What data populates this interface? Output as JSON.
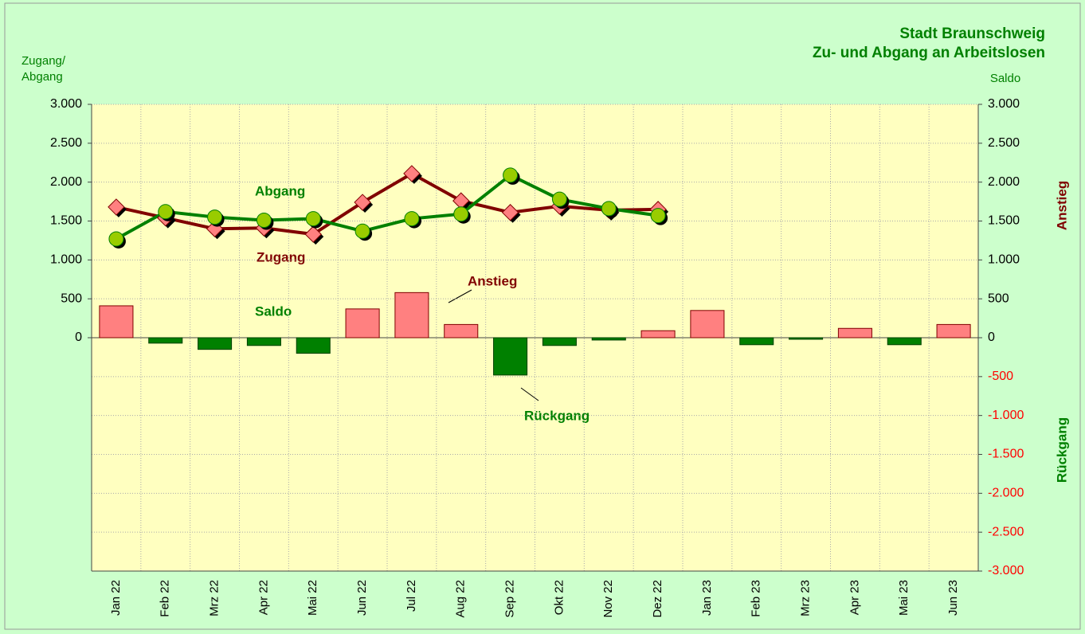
{
  "chart_data": {
    "type": "combo",
    "title": [
      "Stadt Braunschweig",
      "Zu- und Abgang an Arbeitslosen"
    ],
    "y_axis_label": [
      "Zugang/",
      "Abgang"
    ],
    "y2_axis_label": "Saldo",
    "annotations": [
      "Abgang",
      "Zugang",
      "Saldo",
      "Anstieg",
      "Rückgang"
    ],
    "side_labels": [
      "Anstieg",
      "Rückgang"
    ],
    "categories": [
      "Jan 22",
      "Feb 22",
      "Mrz 22",
      "Apr 22",
      "Mai 22",
      "Jun 22",
      "Jul 22",
      "Aug 22",
      "Sep 22",
      "Okt 22",
      "Nov 22",
      "Dez 22",
      "Jan 23",
      "Feb 23",
      "Mrz 23",
      "Apr 23",
      "Mai 23",
      "Jun 23"
    ],
    "bars": {
      "name": "Saldo",
      "axis": "y2",
      "positive_color": "#ff8080",
      "negative_color": "#008000",
      "values": [
        410,
        -70,
        -150,
        -100,
        -200,
        370,
        580,
        170,
        -480,
        -100,
        -30,
        90,
        350,
        -90,
        -20,
        120,
        -90,
        170
      ]
    },
    "series": [
      {
        "name": "Zugang",
        "color": "#800000",
        "marker": "diamond",
        "marker_color": "#ff8080",
        "values": [
          1680,
          1540,
          1400,
          1410,
          1330,
          1740,
          2110,
          1760,
          1610,
          1690,
          1640,
          1650,
          null,
          null,
          null,
          null,
          null,
          null
        ]
      },
      {
        "name": "Abgang",
        "color": "#008000",
        "marker": "circle",
        "marker_color": "#99cc00",
        "values": [
          1270,
          1620,
          1550,
          1510,
          1530,
          1370,
          1530,
          1590,
          2090,
          1780,
          1660,
          1570,
          null,
          null,
          null,
          null,
          null,
          null
        ]
      }
    ],
    "ylim": [
      -3000,
      3000
    ],
    "yticks": [
      {
        "value": 0,
        "label": "0"
      },
      {
        "value": 500,
        "label": "500"
      },
      {
        "value": 1000,
        "label": "1.000"
      },
      {
        "value": 1500,
        "label": "1.500"
      },
      {
        "value": 2000,
        "label": "2.000"
      },
      {
        "value": 2500,
        "label": "2.500"
      },
      {
        "value": 3000,
        "label": "3.000"
      }
    ],
    "y2lim": [
      -3000,
      3000
    ],
    "y2ticks": [
      {
        "value": -3000,
        "label": "-3.000"
      },
      {
        "value": -2500,
        "label": "-2.500"
      },
      {
        "value": -2000,
        "label": "-2.000"
      },
      {
        "value": -1500,
        "label": "-1.500"
      },
      {
        "value": -1000,
        "label": "-1.000"
      },
      {
        "value": -500,
        "label": "-500"
      },
      {
        "value": 0,
        "label": "0"
      },
      {
        "value": 500,
        "label": "500"
      },
      {
        "value": 1000,
        "label": "1.000"
      },
      {
        "value": 1500,
        "label": "1.500"
      },
      {
        "value": 2000,
        "label": "2.000"
      },
      {
        "value": 2500,
        "label": "2.500"
      },
      {
        "value": 3000,
        "label": "3.000"
      }
    ],
    "grid": true
  }
}
